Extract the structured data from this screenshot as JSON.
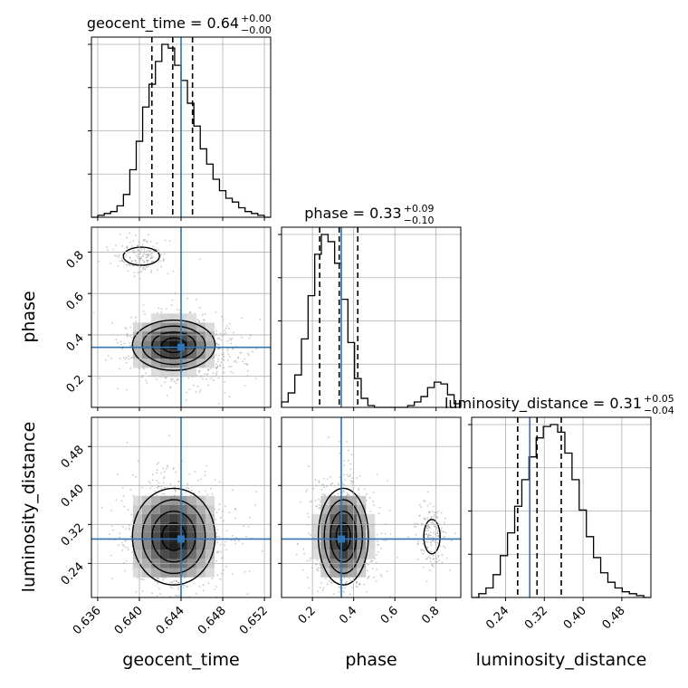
{
  "page": {
    "background": "#ffffff"
  },
  "colors": {
    "truth": "#3274b5",
    "hist": "#000000",
    "quantile": "#000000",
    "grid": "#b0b0b0",
    "scatter": "#9a9a9a"
  },
  "chart_data": {
    "type": "corner",
    "parameters": [
      "geocent_time",
      "phase",
      "luminosity_distance"
    ],
    "truths": {
      "geocent_time": 0.644,
      "phase": 0.34,
      "luminosity_distance": 0.29
    },
    "titles": [
      {
        "prefix": "geocent_time = 0.64",
        "sup": "+0.00",
        "sub": "−0.00"
      },
      {
        "prefix": "phase = 0.33",
        "sup": "+0.09",
        "sub": "−0.10"
      },
      {
        "prefix": "luminosity_distance = 0.31",
        "sup": "+0.05",
        "sub": "−0.04"
      }
    ],
    "axes": {
      "geocent_time": {
        "range": [
          0.6354,
          0.6526
        ],
        "ticks": [
          0.636,
          0.64,
          0.644,
          0.648,
          0.652
        ],
        "tick_labels": [
          "0.636",
          "0.640",
          "0.644",
          "0.648",
          "0.652"
        ],
        "label": "geocent_time"
      },
      "phase": {
        "range": [
          0.05,
          0.92
        ],
        "ticks": [
          0.2,
          0.4,
          0.6,
          0.8
        ],
        "tick_labels": [
          "0.2",
          "0.4",
          "0.6",
          "0.8"
        ],
        "label": "phase"
      },
      "luminosity_distance": {
        "range": [
          0.17,
          0.54
        ],
        "ticks": [
          0.24,
          0.32,
          0.4,
          0.48
        ],
        "tick_labels": [
          "0.24",
          "0.32",
          "0.40",
          "0.48"
        ],
        "label": "luminosity_distance"
      }
    },
    "quantiles": {
      "geocent_time": [
        0.6412,
        0.6432,
        0.6451
      ],
      "phase": [
        0.235,
        0.33,
        0.42
      ],
      "luminosity_distance": [
        0.265,
        0.305,
        0.355
      ]
    },
    "histograms": {
      "geocent_time": [
        0,
        1,
        2,
        3,
        6,
        12,
        25,
        40,
        58,
        70,
        82,
        91,
        89,
        80,
        72,
        60,
        48,
        36,
        28,
        20,
        14,
        10,
        8,
        5,
        3,
        2,
        1,
        0
      ],
      "phase": [
        3,
        8,
        18,
        38,
        62,
        85,
        96,
        92,
        80,
        60,
        36,
        16,
        5,
        1,
        0,
        0,
        0,
        0,
        0,
        1,
        3,
        6,
        11,
        14,
        13,
        7,
        2
      ],
      "luminosity_distance": [
        0,
        2,
        5,
        12,
        22,
        34,
        48,
        62,
        74,
        84,
        90,
        91,
        87,
        76,
        62,
        46,
        32,
        21,
        13,
        8,
        5,
        3,
        2,
        1,
        0
      ]
    },
    "clusters": {
      "main": {
        "geocent_time": 0.6433,
        "phase": 0.35,
        "luminosity_distance": 0.295
      },
      "secondary": {
        "geocent_time": 0.6402,
        "phase": 0.78,
        "luminosity_distance": 0.295
      }
    },
    "grid": true
  }
}
